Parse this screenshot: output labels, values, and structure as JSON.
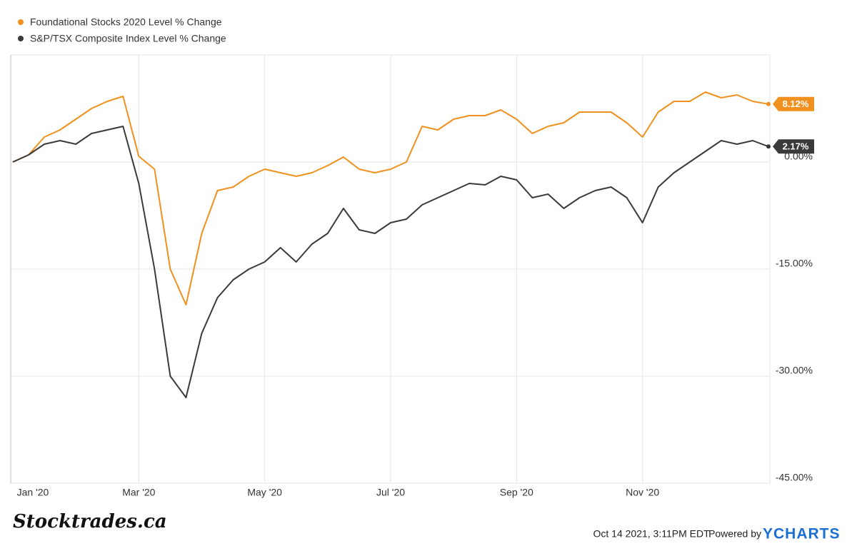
{
  "chart_data": {
    "type": "line",
    "categories": [
      "Jan '20",
      null,
      null,
      null,
      null,
      null,
      null,
      null,
      "Mar '20",
      null,
      null,
      null,
      null,
      null,
      null,
      null,
      "May '20",
      null,
      null,
      null,
      null,
      null,
      null,
      null,
      "Jul '20",
      null,
      null,
      null,
      null,
      null,
      null,
      null,
      "Sep '20",
      null,
      null,
      null,
      null,
      null,
      null,
      null,
      "Nov '20",
      null,
      null,
      null,
      null,
      null,
      null,
      null,
      null
    ],
    "series": [
      {
        "name": "Foundational Stocks 2020 Level % Change",
        "color": "#f0901e",
        "values": [
          0,
          1,
          3.5,
          4.5,
          6,
          7.5,
          8.5,
          9.2,
          0.8,
          -1,
          -15,
          -20,
          -10,
          -4,
          -3.5,
          -2,
          -1,
          -1.5,
          -2,
          -1.5,
          -0.5,
          0.7,
          -1,
          -1.5,
          -1,
          0,
          5,
          4.5,
          6,
          6.5,
          6.5,
          7.3,
          6,
          4,
          5,
          5.5,
          7,
          7,
          7,
          5.5,
          3.5,
          7,
          8.5,
          8.5,
          9.8,
          9,
          9.4,
          8.5,
          8.12
        ],
        "value_labels": [
          null,
          null,
          null,
          null,
          null,
          null,
          null,
          null,
          null,
          null,
          null,
          null,
          null,
          null,
          null,
          null,
          null,
          null,
          null,
          null,
          null,
          null,
          null,
          null,
          null,
          null,
          null,
          null,
          null,
          null,
          null,
          null,
          null,
          null,
          null,
          null,
          null,
          null,
          null,
          null,
          null,
          null,
          null,
          null,
          null,
          null,
          null,
          null,
          "8.12%"
        ]
      },
      {
        "name": "S&P/TSX Composite Index Level % Change",
        "color": "#3a3a3a",
        "values": [
          0,
          1,
          2.5,
          3,
          2.5,
          4,
          4.5,
          5,
          -3,
          -15,
          -30,
          -33,
          -24,
          -19,
          -16.5,
          -15,
          -14,
          -12,
          -14,
          -11.5,
          -10,
          -6.5,
          -9.5,
          -10,
          -8.5,
          -8,
          -6,
          -5,
          -4,
          -3,
          -3.2,
          -2,
          -2.5,
          -5,
          -4.5,
          -6.5,
          -5,
          -4,
          -3.5,
          -5,
          -8.5,
          -3.5,
          -1.5,
          0,
          1.5,
          3,
          2.5,
          3,
          2.17
        ],
        "value_labels": [
          null,
          null,
          null,
          null,
          null,
          null,
          null,
          null,
          null,
          null,
          null,
          null,
          null,
          null,
          null,
          null,
          null,
          null,
          null,
          null,
          null,
          null,
          null,
          null,
          null,
          null,
          null,
          null,
          null,
          null,
          null,
          null,
          null,
          null,
          null,
          null,
          null,
          null,
          null,
          null,
          null,
          null,
          null,
          null,
          null,
          null,
          null,
          null,
          "2.17%"
        ]
      }
    ],
    "ylim": [
      -45,
      15
    ],
    "yticks": [
      {
        "value": -45,
        "label": "-45.00%"
      },
      {
        "value": -30,
        "label": "-30.00%"
      },
      {
        "value": -15,
        "label": "-15.00%"
      },
      {
        "value": 0,
        "label": "0.00%"
      }
    ],
    "grid": true,
    "legend": "top-left"
  },
  "footer": {
    "logo": "Stocktrades.ca",
    "timestamp": "Oct 14 2021, 3:11PM EDT.",
    "powered_by": "Powered by",
    "brand": "YCHARTS"
  }
}
